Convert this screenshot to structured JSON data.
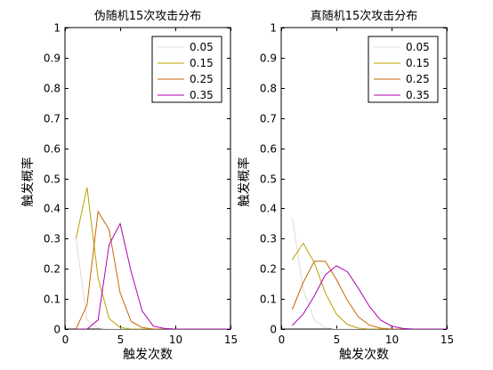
{
  "chart_data": [
    {
      "type": "line",
      "title": "伪随机15次攻击分布",
      "xlabel": "触发次数",
      "ylabel": "触发概率",
      "xlim": [
        0,
        15
      ],
      "ylim": [
        0,
        1
      ],
      "xticks": [
        "0",
        "5",
        "10",
        "15"
      ],
      "yticks": [
        "0",
        "0.1",
        "0.2",
        "0.3",
        "0.4",
        "0.5",
        "0.6",
        "0.7",
        "0.8",
        "0.9",
        "1"
      ],
      "legend_position": "top-right",
      "series": [
        {
          "name": "0.05",
          "color": "#dcdcdc",
          "x": [
            1,
            2,
            3,
            4,
            5,
            6,
            7,
            8,
            9,
            10,
            11,
            12,
            13,
            14,
            15
          ],
          "values": [
            0.3,
            0.03,
            0.003,
            0.0,
            0.0,
            0.0,
            0.0,
            0.0,
            0.0,
            0.0,
            0.0,
            0.0,
            0.0,
            0.0,
            0.0
          ]
        },
        {
          "name": "0.15",
          "color": "#b8a000",
          "x": [
            1,
            2,
            3,
            4,
            5,
            6,
            7,
            8,
            9,
            10,
            11,
            12,
            13,
            14,
            15
          ],
          "values": [
            0.3,
            0.47,
            0.17,
            0.035,
            0.005,
            0.0,
            0.0,
            0.0,
            0.0,
            0.0,
            0.0,
            0.0,
            0.0,
            0.0,
            0.0
          ]
        },
        {
          "name": "0.25",
          "color": "#c86400",
          "x": [
            1,
            2,
            3,
            4,
            5,
            6,
            7,
            8,
            9,
            10,
            11,
            12,
            13,
            14,
            15
          ],
          "values": [
            0.0,
            0.08,
            0.39,
            0.33,
            0.12,
            0.025,
            0.005,
            0.0,
            0.0,
            0.0,
            0.0,
            0.0,
            0.0,
            0.0,
            0.0
          ]
        },
        {
          "name": "0.35",
          "color": "#b000b0",
          "x": [
            1,
            2,
            3,
            4,
            5,
            6,
            7,
            8,
            9,
            10,
            11,
            12,
            13,
            14,
            15
          ],
          "values": [
            0.0,
            0.0,
            0.03,
            0.28,
            0.35,
            0.19,
            0.06,
            0.01,
            0.002,
            0.0,
            0.0,
            0.0,
            0.0,
            0.0,
            0.0
          ]
        }
      ]
    },
    {
      "type": "line",
      "title": "真随机15次攻击分布",
      "xlabel": "触发次数",
      "ylabel": "触发概率",
      "xlim": [
        0,
        15
      ],
      "ylim": [
        0,
        1
      ],
      "xticks": [
        "0",
        "5",
        "10",
        "15"
      ],
      "yticks": [
        "0",
        "0.1",
        "0.2",
        "0.3",
        "0.4",
        "0.5",
        "0.6",
        "0.7",
        "0.8",
        "0.9",
        "1"
      ],
      "legend_position": "top-right",
      "series": [
        {
          "name": "0.05",
          "color": "#dcdcdc",
          "x": [
            1,
            2,
            3,
            4,
            5,
            6,
            7,
            8,
            9,
            10,
            11,
            12,
            13,
            14,
            15
          ],
          "values": [
            0.37,
            0.13,
            0.03,
            0.005,
            0.0,
            0.0,
            0.0,
            0.0,
            0.0,
            0.0,
            0.0,
            0.0,
            0.0,
            0.0,
            0.0
          ]
        },
        {
          "name": "0.15",
          "color": "#b8a000",
          "x": [
            1,
            2,
            3,
            4,
            5,
            6,
            7,
            8,
            9,
            10,
            11,
            12,
            13,
            14,
            15
          ],
          "values": [
            0.23,
            0.285,
            0.22,
            0.12,
            0.05,
            0.015,
            0.003,
            0.0,
            0.0,
            0.0,
            0.0,
            0.0,
            0.0,
            0.0,
            0.0
          ]
        },
        {
          "name": "0.25",
          "color": "#c86400",
          "x": [
            1,
            2,
            3,
            4,
            5,
            6,
            7,
            8,
            9,
            10,
            11,
            12,
            13,
            14,
            15
          ],
          "values": [
            0.065,
            0.155,
            0.225,
            0.225,
            0.165,
            0.095,
            0.04,
            0.013,
            0.003,
            0.0,
            0.0,
            0.0,
            0.0,
            0.0,
            0.0
          ]
        },
        {
          "name": "0.35",
          "color": "#b000b0",
          "x": [
            1,
            2,
            3,
            4,
            5,
            6,
            7,
            8,
            9,
            10,
            11,
            12,
            13,
            14,
            15
          ],
          "values": [
            0.012,
            0.05,
            0.11,
            0.18,
            0.21,
            0.19,
            0.135,
            0.075,
            0.03,
            0.01,
            0.002,
            0.0,
            0.0,
            0.0,
            0.0
          ]
        }
      ]
    }
  ]
}
